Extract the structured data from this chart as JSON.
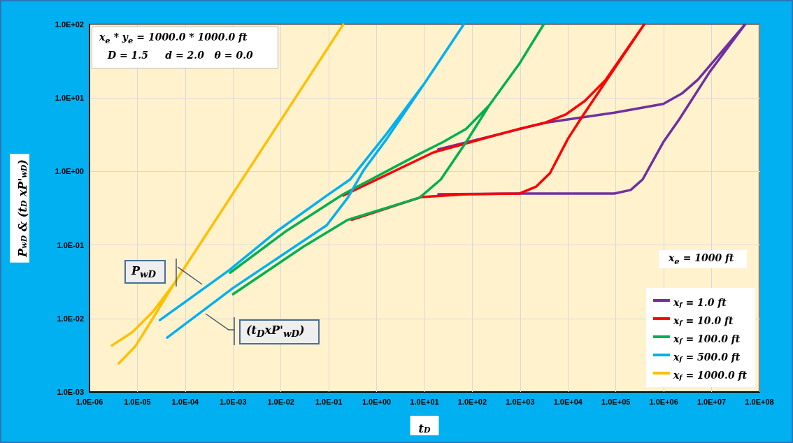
{
  "chart_data": {
    "type": "line",
    "xlabel": "t$_{D}$",
    "ylabel": "P$_{wD}$ & (t$_{D}$ xP'$_{wD}$)",
    "legend_title": "x$_{e}$ = 1000 ft",
    "log": "xy",
    "grid": true,
    "legend": "bottom right",
    "marker": "none",
    "line_style": "solid",
    "xlim": [
      1e-06,
      100000000.0
    ],
    "ylim": [
      0.001,
      100
    ],
    "xticks": [
      {
        "value": 1e-06,
        "label": "1.0E-06"
      },
      {
        "value": 1e-05,
        "label": "1.0E-05"
      },
      {
        "value": 0.0001,
        "label": "1.0E-04"
      },
      {
        "value": 0.001,
        "label": "1.0E-03"
      },
      {
        "value": 0.01,
        "label": "1.0E-02"
      },
      {
        "value": 0.1,
        "label": "1.0E-01"
      },
      {
        "value": 1,
        "label": "1.0E+00"
      },
      {
        "value": 10,
        "label": "1.0E+01"
      },
      {
        "value": 100,
        "label": "1.0E+02"
      },
      {
        "value": 1000,
        "label": "1.0E+03"
      },
      {
        "value": 10000,
        "label": "1.0E+04"
      },
      {
        "value": 100000,
        "label": "1.0E+05"
      },
      {
        "value": 1000000,
        "label": "1.0E+06"
      },
      {
        "value": 10000000,
        "label": "1.0E+07"
      },
      {
        "value": 100000000,
        "label": "1.0E+08"
      }
    ],
    "yticks": [
      {
        "value": 0.001,
        "label": "1.0E-03"
      },
      {
        "value": 0.01,
        "label": "1.0E-02"
      },
      {
        "value": 0.1,
        "label": "1.0E-01"
      },
      {
        "value": 1,
        "label": "1.0E+00"
      },
      {
        "value": 10,
        "label": "1.0E+01"
      },
      {
        "value": 100,
        "label": "1.0E+02"
      }
    ],
    "annotations": [
      "x$_{e}$ * y$_{e}$ = 1000.0 * 1000.0 ft",
      "D = 1.5     d = 2.0   θ = 0.0",
      "P$_{wD}$",
      "(t$_{D}$xP'$_{wD}$)"
    ],
    "series": [
      {
        "name": "x$_{f}$ = 1.0 ft",
        "color": "#7030a0",
        "x": [
          19.5,
          3300,
          93000,
          977000,
          2400000,
          5200000,
          16000000,
          50000000,
          null,
          19.5,
          955,
          93000,
          204000,
          363000,
          977000,
          2100000,
          9300000,
          50000000
        ],
        "values": [
          2.0,
          4.6,
          6.3,
          8.3,
          11.5,
          17.8,
          42,
          100,
          null,
          0.49,
          0.5,
          0.5,
          0.56,
          0.78,
          2.5,
          5.1,
          23,
          100
        ]
      },
      {
        "name": "x$_{f}$ = 10.0 ft",
        "color": "#ff0000",
        "x": [
          0.2,
          15.5,
          955,
          3300,
          9100,
          22400,
          62000,
          389000,
          null,
          0.3,
          8.7,
          74,
          955,
          2140,
          4200,
          10000,
          19500,
          93000,
          389000
        ],
        "values": [
          0.47,
          1.82,
          3.8,
          4.6,
          6.0,
          9.1,
          17.8,
          100,
          null,
          0.22,
          0.45,
          0.49,
          0.5,
          0.62,
          0.95,
          2.8,
          5.5,
          25,
          100
        ]
      },
      {
        "name": "x$_{f}$ = 100.0 ft",
        "color": "#00b050",
        "x": [
          0.00087,
          0.0135,
          0.2,
          7.9,
          24,
          74,
          224,
          955,
          3090,
          null,
          0.001,
          0.0295,
          0.25,
          7.9,
          22,
          74,
          224,
          955,
          3090
        ],
        "values": [
          0.042,
          0.158,
          0.49,
          1.74,
          2.5,
          3.8,
          7.9,
          29,
          100,
          null,
          0.0214,
          0.095,
          0.22,
          0.44,
          0.78,
          2.5,
          7.9,
          29,
          100
        ]
      },
      {
        "name": "x$_{f}$ = 500.0 ft",
        "color": "#00b0f0",
        "x": [
          2.95e-05,
          0.00085,
          0.0087,
          0.091,
          0.28,
          1.64,
          10,
          66,
          null,
          4.2e-05,
          0.001,
          0.091,
          0.25,
          0.54,
          1.64,
          10,
          66
        ],
        "values": [
          0.0095,
          0.046,
          0.158,
          0.47,
          0.78,
          3.3,
          15.8,
          100,
          null,
          0.0055,
          0.026,
          0.186,
          0.44,
          1.05,
          2.8,
          15.8,
          100
        ]
      },
      {
        "name": "x$_{f}$ = 1000.0 ft",
        "color": "#ffc000",
        "x": [
          2.95e-06,
          7.8e-06,
          2.1e-05,
          5.8e-05,
          0.01,
          0.2,
          null,
          4.1e-06,
          9.1e-06,
          2.1e-05,
          5.8e-05,
          0.01,
          0.2
        ],
        "values": [
          0.0043,
          0.0065,
          0.0123,
          0.0295,
          5.0,
          100,
          null,
          0.00245,
          0.0042,
          0.01,
          0.0295,
          5.0,
          100
        ]
      }
    ]
  }
}
